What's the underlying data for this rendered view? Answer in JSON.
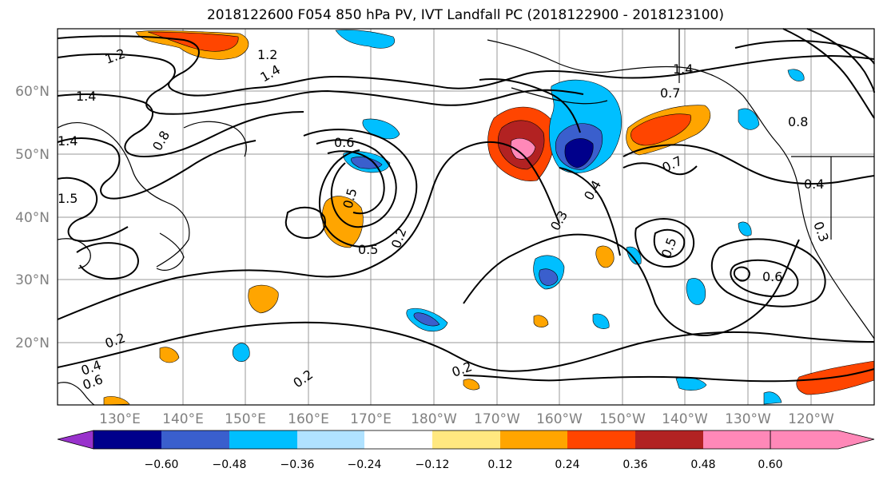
{
  "title": "2018122600 F054 850 hPa PV, IVT Landfall PC (2018122900 - 2018123100)",
  "lat_labels": [
    "60°N",
    "50°N",
    "40°N",
    "30°N",
    "20°N"
  ],
  "lon_labels": [
    "130°E",
    "140°E",
    "150°E",
    "160°E",
    "170°E",
    "180°W",
    "170°W",
    "160°W",
    "150°W",
    "140°W",
    "130°W",
    "120°W"
  ],
  "contour_labels": [
    "1.2",
    "1.2",
    "1.4",
    "1.4",
    "1.4",
    "1.4",
    "0.8",
    "0.8",
    "0.7",
    "0.7",
    "0.6",
    "0.6",
    "0.5",
    "0.5",
    "0.5",
    "0.4",
    "0.4",
    "0.3",
    "0.3",
    "0.2",
    "0.2",
    "0.2",
    "0.2",
    "1.5",
    "0.4",
    "0.6"
  ],
  "colorbar": {
    "ticks": [
      "−0.60",
      "−0.48",
      "−0.36",
      "−0.24",
      "−0.12",
      "0.12",
      "0.24",
      "0.36",
      "0.48",
      "0.60"
    ],
    "colors": [
      "#9932cc",
      "#00008b",
      "#3a5fcd",
      "#00bfff",
      "#b0e2ff",
      "#ffffff",
      "#ffe880",
      "#ffa500",
      "#ff4500",
      "#b22222",
      "#ff88b8"
    ]
  }
}
